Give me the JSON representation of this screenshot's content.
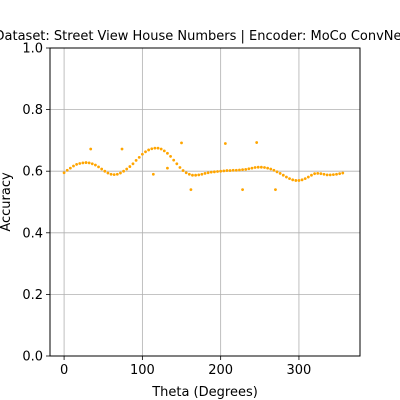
{
  "chart_data": {
    "type": "scatter",
    "title": "Dataset: Street View House Numbers | Encoder: MoCo ConvNeXt",
    "xlabel": "Theta (Degrees)",
    "ylabel": "Accuracy",
    "xlim": [
      -18,
      378
    ],
    "ylim": [
      0.0,
      1.0
    ],
    "xticks": [
      0,
      100,
      200,
      300
    ],
    "yticks": [
      0.0,
      0.2,
      0.4,
      0.6,
      0.8,
      1.0
    ],
    "xtick_labels": [
      "0",
      "100",
      "200",
      "300"
    ],
    "ytick_labels": [
      "0.0",
      "0.2",
      "0.4",
      "0.6",
      "0.8",
      "1.0"
    ],
    "grid": true,
    "marker_color": "#FFA500",
    "series": [
      {
        "x": [
          0,
          4,
          8,
          12,
          16,
          20,
          24,
          28,
          32,
          36,
          40,
          44,
          48,
          52,
          56,
          60,
          64,
          68,
          72,
          76,
          80,
          84,
          88,
          92,
          96,
          100,
          104,
          108,
          112,
          116,
          120,
          124,
          128,
          132,
          136,
          140,
          144,
          148,
          152,
          156,
          160,
          164,
          168,
          172,
          176,
          180,
          184,
          188,
          192,
          196,
          200,
          204,
          208,
          212,
          216,
          220,
          224,
          228,
          232,
          236,
          240,
          244,
          248,
          252,
          256,
          260,
          264,
          268,
          272,
          276,
          280,
          284,
          288,
          292,
          296,
          300,
          304,
          308,
          312,
          316,
          320,
          324,
          328,
          332,
          336,
          340,
          344,
          348,
          352,
          356,
          34,
          74,
          114,
          132,
          150,
          162,
          206,
          228,
          246,
          270
        ],
        "y": [
          0.595,
          0.603,
          0.61,
          0.617,
          0.622,
          0.625,
          0.627,
          0.628,
          0.627,
          0.624,
          0.62,
          0.614,
          0.607,
          0.6,
          0.594,
          0.59,
          0.589,
          0.59,
          0.594,
          0.6,
          0.607,
          0.615,
          0.624,
          0.635,
          0.645,
          0.655,
          0.663,
          0.669,
          0.673,
          0.675,
          0.675,
          0.672,
          0.666,
          0.658,
          0.648,
          0.636,
          0.624,
          0.612,
          0.602,
          0.595,
          0.59,
          0.587,
          0.587,
          0.588,
          0.59,
          0.593,
          0.595,
          0.597,
          0.598,
          0.599,
          0.6,
          0.601,
          0.602,
          0.602,
          0.603,
          0.603,
          0.604,
          0.605,
          0.606,
          0.608,
          0.61,
          0.612,
          0.613,
          0.613,
          0.612,
          0.61,
          0.607,
          0.603,
          0.598,
          0.593,
          0.587,
          0.581,
          0.576,
          0.572,
          0.57,
          0.57,
          0.572,
          0.576,
          0.581,
          0.587,
          0.592,
          0.593,
          0.592,
          0.59,
          0.588,
          0.588,
          0.589,
          0.59,
          0.592,
          0.594,
          0.672,
          0.672,
          0.59,
          0.61,
          0.692,
          0.54,
          0.69,
          0.54,
          0.693,
          0.54
        ]
      }
    ]
  }
}
